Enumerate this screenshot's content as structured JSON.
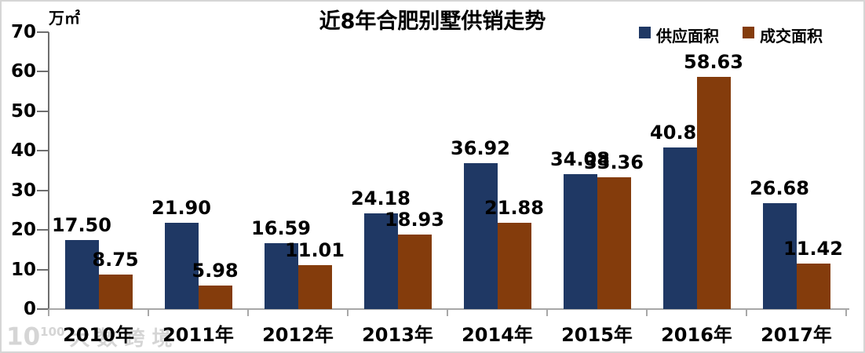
{
  "chart_data": {
    "type": "bar",
    "title": "近8年合肥别墅供销走势",
    "unit": "万㎡",
    "categories": [
      "2010年",
      "2011年",
      "2012年",
      "2013年",
      "2014年",
      "2015年",
      "2016年",
      "2017年"
    ],
    "series": [
      {
        "name": "供应面积",
        "color": "#1F3864",
        "values": [
          17.5,
          21.9,
          16.59,
          24.18,
          36.92,
          34.08,
          40.87,
          26.68
        ]
      },
      {
        "name": "成交面积",
        "color": "#843C0C",
        "values": [
          8.75,
          5.98,
          11.01,
          18.93,
          21.88,
          33.36,
          58.63,
          11.42
        ]
      }
    ],
    "ylim": [
      0,
      70
    ],
    "yticks": [
      0,
      10,
      20,
      30,
      40,
      50,
      60,
      70
    ],
    "legend_position": "top-right",
    "grid": false,
    "value_label_decimals": 2
  },
  "watermark": {
    "logo_main": "10",
    "logo_sup": "100",
    "text": "大数跨境"
  },
  "colors": {
    "axis_y": "#6E6E6E",
    "axis_x": "#A8A8A8",
    "frame": "#D6D6D6",
    "text": "#000000",
    "watermark": "#D5D5D5"
  }
}
